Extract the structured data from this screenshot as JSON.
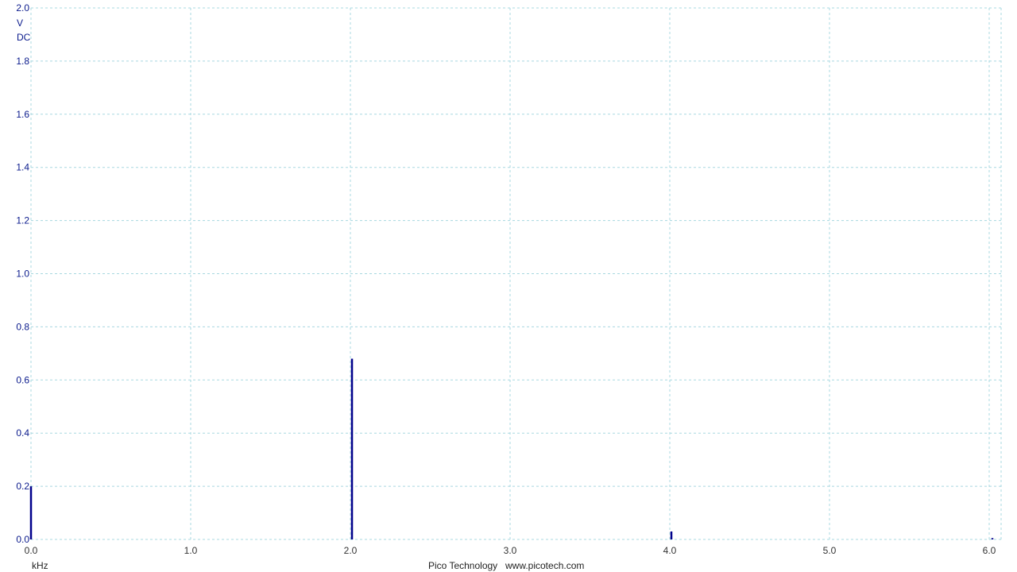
{
  "chart_data": {
    "type": "bar",
    "ylabel_unit": "V",
    "coupling": "DC",
    "xlabel_unit": "kHz",
    "xlim": [
      0.0,
      6.1
    ],
    "ylim": [
      0.0,
      2.0
    ],
    "x_ticks": [
      "0.0",
      "1.0",
      "2.0",
      "3.0",
      "4.0",
      "5.0",
      "6.0"
    ],
    "y_ticks": [
      "0.0",
      "0.2",
      "0.4",
      "0.6",
      "0.8",
      "1.0",
      "1.2",
      "1.4",
      "1.6",
      "1.8",
      "2.0"
    ],
    "grid": true,
    "series": [
      {
        "color": "#00008b",
        "points": [
          {
            "x": 0.0,
            "y": 0.2
          },
          {
            "x": 2.01,
            "y": 0.68
          },
          {
            "x": 4.01,
            "y": 0.03
          },
          {
            "x": 6.02,
            "y": 0.005
          }
        ]
      }
    ]
  },
  "footer": {
    "brand": "Pico Technology",
    "url": "www.picotech.com"
  },
  "colors": {
    "grid": "#a8d8e0",
    "trace": "#00008b",
    "axis_text": "#0a1a8c"
  }
}
